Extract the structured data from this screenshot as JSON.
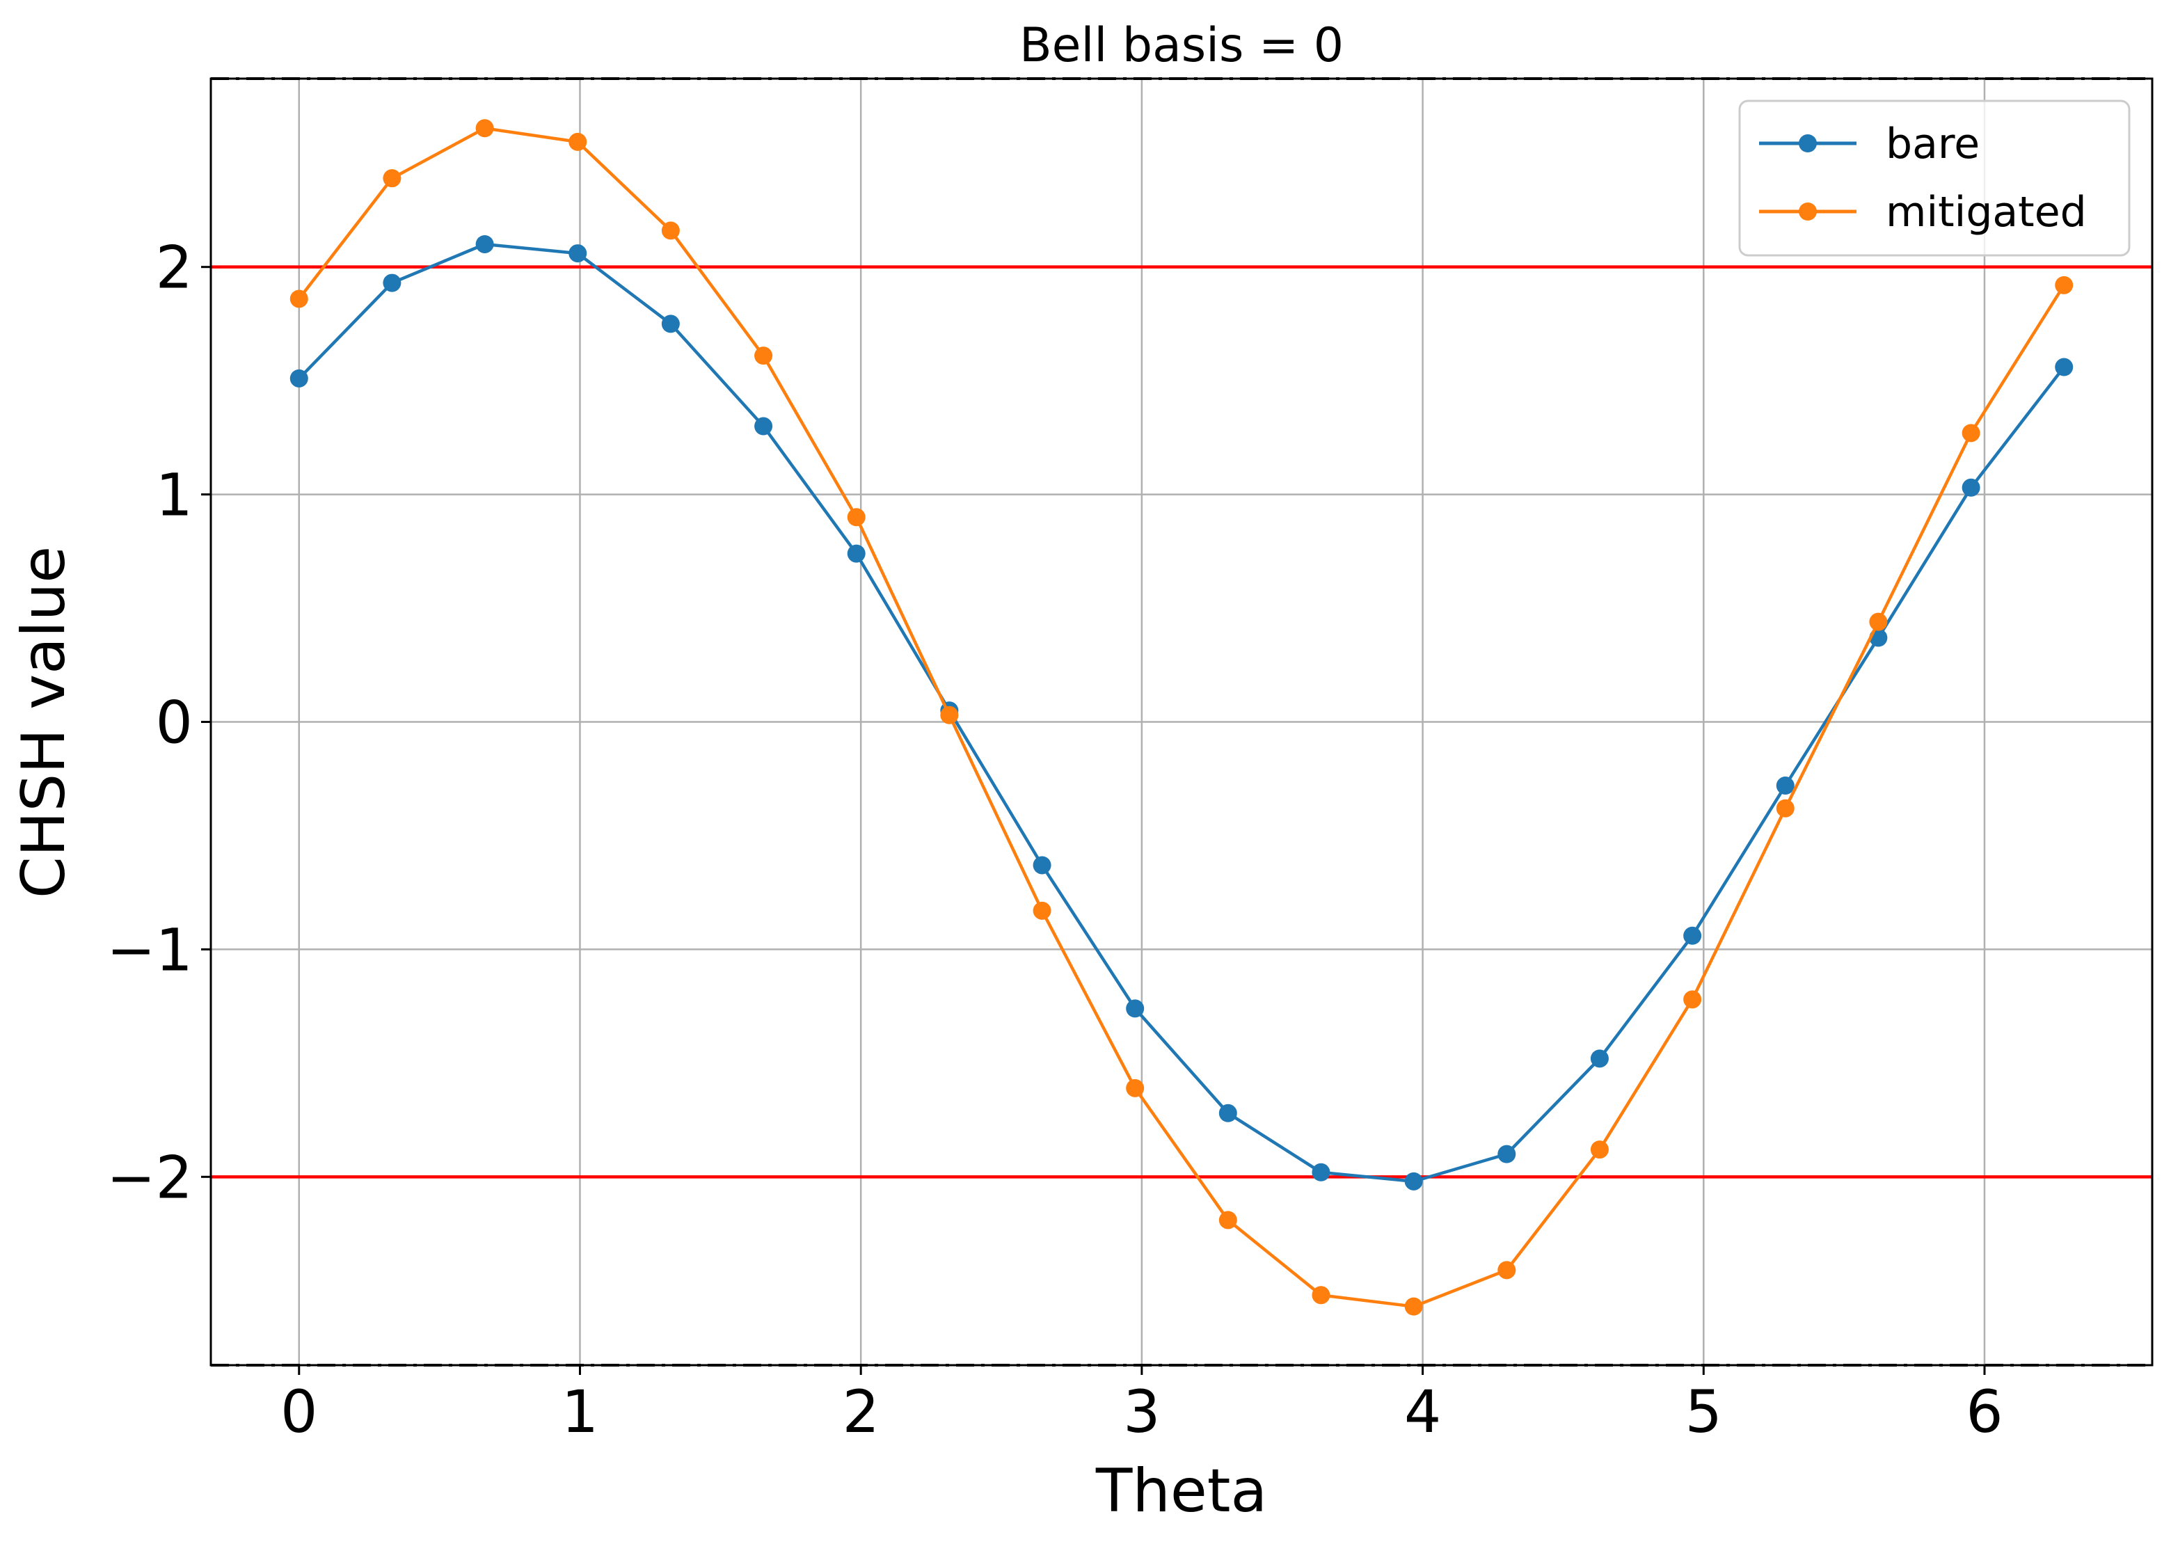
{
  "chart_data": {
    "type": "line",
    "title": "Bell basis = 0",
    "xlabel": "Theta",
    "ylabel": "CHSH value",
    "xlim": [
      -0.314,
      6.597
    ],
    "ylim": [
      -2.828,
      2.828
    ],
    "xticks": [
      0,
      1,
      2,
      3,
      4,
      5,
      6
    ],
    "xtick_labels": [
      "0",
      "1",
      "2",
      "3",
      "4",
      "5",
      "6"
    ],
    "yticks": [
      -2,
      -1,
      0,
      1,
      2
    ],
    "ytick_labels": [
      "−2",
      "−1",
      "0",
      "1",
      "2"
    ],
    "grid": true,
    "legend_position": "upper right",
    "x": [
      0,
      0.331,
      0.661,
      0.992,
      1.323,
      1.653,
      1.984,
      2.315,
      2.645,
      2.976,
      3.307,
      3.638,
      3.968,
      4.299,
      4.63,
      4.96,
      5.291,
      5.622,
      5.952,
      6.283
    ],
    "series": [
      {
        "name": "bare",
        "color": "#1f77b4",
        "values": [
          1.51,
          1.93,
          2.1,
          2.06,
          1.75,
          1.3,
          0.74,
          0.05,
          -0.63,
          -1.26,
          -1.72,
          -1.98,
          -2.02,
          -1.9,
          -1.48,
          -0.94,
          -0.28,
          0.37,
          1.03,
          1.56
        ]
      },
      {
        "name": "mitigated",
        "color": "#ff7f0e",
        "values": [
          1.86,
          2.39,
          2.61,
          2.55,
          2.16,
          1.61,
          0.9,
          0.03,
          -0.83,
          -1.61,
          -2.19,
          -2.52,
          -2.57,
          -2.41,
          -1.88,
          -1.22,
          -0.38,
          0.44,
          1.27,
          1.92
        ]
      }
    ],
    "reference_lines": [
      {
        "y": 2,
        "color": "#ff0000",
        "style": "solid"
      },
      {
        "y": -2,
        "color": "#ff0000",
        "style": "solid"
      },
      {
        "y": 2.828,
        "color": "#000000",
        "style": "dashdot"
      },
      {
        "y": -2.828,
        "color": "#000000",
        "style": "dashdot"
      }
    ]
  }
}
